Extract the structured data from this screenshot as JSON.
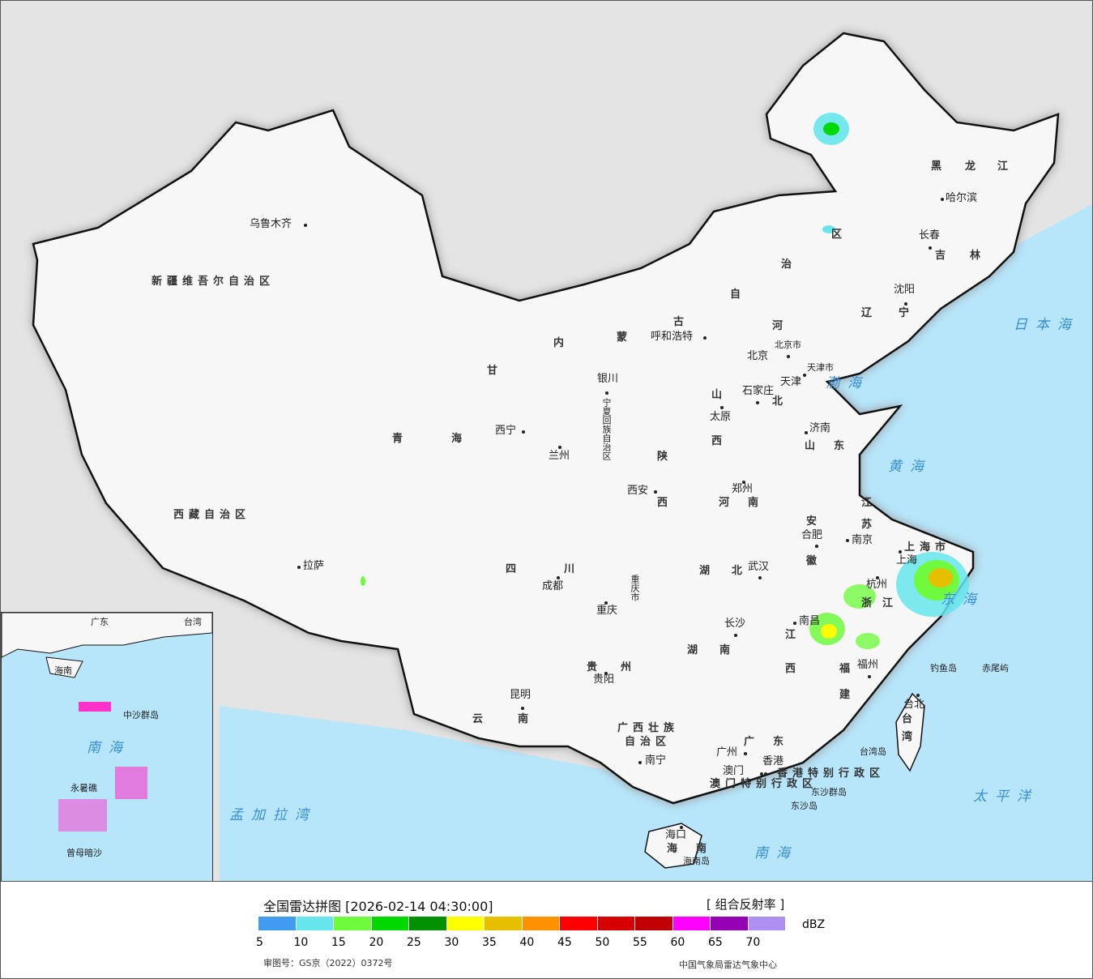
{
  "title": "全国雷达拼图 [2026-02-14 04:30:00]",
  "product": "[ 组合反射率 ]",
  "unit": "dBZ",
  "approval_number": "审图号：GS京（2022）0372号",
  "credit": "中国气象局雷达气象中心",
  "legend": {
    "ticks": [
      "5",
      "10",
      "15",
      "20",
      "25",
      "30",
      "35",
      "40",
      "45",
      "50",
      "55",
      "60",
      "65",
      "70"
    ],
    "colors": [
      "#419cf0",
      "#66e6ec",
      "#70fa3e",
      "#00d800",
      "#009000",
      "#ffff00",
      "#e6c000",
      "#ff9000",
      "#ff0000",
      "#d60000",
      "#c00000",
      "#ff00ff",
      "#9600b4",
      "#ae90f0"
    ]
  },
  "colors": {
    "land_china": "#f7f7f7",
    "land_other": "#e4e4e4",
    "sea": "#b7e6fb",
    "rivers": "#33aaff"
  },
  "map": {
    "cities": [
      "乌鲁木齐",
      "拉萨",
      "西宁",
      "兰州",
      "呼和浩特",
      "银川",
      "西安",
      "太原",
      "北京",
      "天津",
      "石家庄",
      "沈阳",
      "长春",
      "哈尔滨",
      "济南",
      "郑州",
      "合肥",
      "南京",
      "上海",
      "武汉",
      "成都",
      "重庆",
      "杭州",
      "长沙",
      "南昌",
      "福州",
      "贵阳",
      "昆明",
      "南宁",
      "广州",
      "澳门",
      "香港",
      "海口",
      "台北"
    ],
    "regions": [
      "新疆维吾尔自治区",
      "西藏自治区",
      "青",
      "海",
      "甘",
      "内",
      "蒙",
      "古",
      "自",
      "治",
      "区",
      "宁夏回族自治区",
      "陕",
      "西",
      "山",
      "西",
      "河",
      "北",
      "北京市",
      "天津市",
      "辽",
      "宁",
      "吉",
      "林",
      "黑",
      "龙",
      "江",
      "山",
      "东",
      "河",
      "南",
      "江",
      "苏",
      "安",
      "徽",
      "上海市",
      "湖",
      "北",
      "四",
      "川",
      "重庆市",
      "浙",
      "江",
      "湖",
      "南",
      "江",
      "西",
      "福",
      "建",
      "贵",
      "州",
      "云",
      "南",
      "广西壮族",
      "自治区",
      "广",
      "东",
      "香港特别行政区",
      "澳门特别行政区",
      "海",
      "南",
      "台",
      "湾"
    ],
    "islands": [
      "东沙群岛",
      "东沙岛",
      "钓鱼岛",
      "赤尾屿",
      "台湾岛",
      "海南岛"
    ],
    "seas": [
      "日本海",
      "渤海",
      "黄海",
      "东海",
      "太平洋",
      "南海",
      "孟加拉湾"
    ],
    "inset": {
      "labels": [
        "南海",
        "广东",
        "台湾",
        "海南",
        "中沙群岛",
        "永暑礁",
        "曾母暗沙"
      ]
    }
  }
}
